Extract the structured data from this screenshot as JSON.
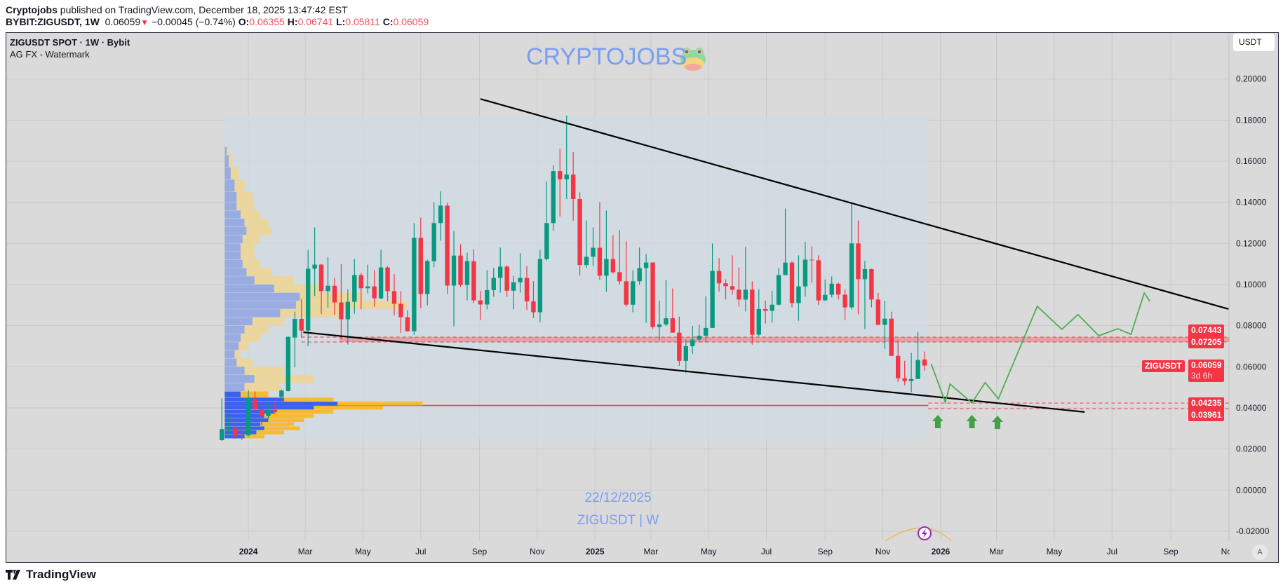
{
  "header": {
    "publisher": "Cryptojobs",
    "published_text": "published on TradingView.com, December 18, 2025 13:47:42 EST",
    "symbol_interval": "BYBIT:ZIGUSDT, 1W",
    "last": "0.06059",
    "change": "−0.00045 (−0.74%)",
    "o_label": "O:",
    "o": "0.06355",
    "h_label": "H:",
    "h": "0.06741",
    "l_label": "L:",
    "l": "0.05811",
    "c_label": "C:",
    "c": "0.06059"
  },
  "legend": {
    "title": "ZIGUSDT SPOT · 1W · Bybit",
    "indicator": "AG FX - Watermark"
  },
  "currency_button": "USDT",
  "watermark": {
    "brand": "CRYPTOJOBS",
    "date": "22/12/2025",
    "symbol": "ZIGUSDT | W"
  },
  "auto_button": "A",
  "branding": "TradingView",
  "colors": {
    "up": "#089981",
    "down": "#f23645",
    "projection": "#4caf50",
    "watermark": "#7b9ef0",
    "trendline": "#000000"
  },
  "icons": {
    "frog": "frog-emoji-icon",
    "lightning": "lightning-icon",
    "arrow": "arrow-up-icon"
  },
  "price_labels": {
    "resistance_top": "0.07443",
    "resistance_bottom": "0.07205",
    "symbol_tag": "ZIGUSDT",
    "last_price": "0.06059",
    "countdown": "3d 6h",
    "support_top": "0.04235",
    "support_bottom": "0.03961"
  },
  "chart_data": {
    "type": "candlestick",
    "interval": "1W",
    "grid": true,
    "y_axis": {
      "range": [
        -0.025,
        0.215
      ],
      "ticks": [
        "0.20000",
        "0.18000",
        "0.16000",
        "0.14000",
        "0.12000",
        "0.10000",
        "0.08000",
        "0.06000",
        "0.04000",
        "0.02000",
        "0.00000",
        "-0.02000"
      ]
    },
    "x_ticks": [
      {
        "label": "2024",
        "date": "2024-01-01"
      },
      {
        "label": "Mar",
        "date": "2024-03-01"
      },
      {
        "label": "May",
        "date": "2024-05-01"
      },
      {
        "label": "Jul",
        "date": "2024-07-01"
      },
      {
        "label": "Sep",
        "date": "2024-09-01"
      },
      {
        "label": "Nov",
        "date": "2024-11-01"
      },
      {
        "label": "2025",
        "date": "2025-01-01"
      },
      {
        "label": "Mar",
        "date": "2025-03-01"
      },
      {
        "label": "May",
        "date": "2025-05-01"
      },
      {
        "label": "Jul",
        "date": "2025-07-01"
      },
      {
        "label": "Sep",
        "date": "2025-09-01"
      },
      {
        "label": "Nov",
        "date": "2025-11-01"
      },
      {
        "label": "2026",
        "date": "2026-01-01"
      },
      {
        "label": "Mar",
        "date": "2026-03-01"
      },
      {
        "label": "May",
        "date": "2026-05-01"
      },
      {
        "label": "Jul",
        "date": "2026-07-01"
      },
      {
        "label": "Sep",
        "date": "2026-09-01"
      },
      {
        "label": "Nov",
        "date": "2026-11-01"
      }
    ],
    "candles_columns": [
      "date",
      "open",
      "high",
      "low",
      "close"
    ],
    "candles": [
      [
        "2023-12-04",
        0.0243,
        0.0447,
        0.024,
        0.0297
      ],
      [
        "2023-12-11",
        0.0297,
        0.0385,
        0.026,
        0.0305
      ],
      [
        "2023-12-18",
        0.03,
        0.0328,
        0.025,
        0.0263
      ],
      [
        "2023-12-25",
        0.0268,
        0.032,
        0.0245,
        0.0265
      ],
      [
        "2024-01-01",
        0.0266,
        0.0485,
        0.026,
        0.0448
      ],
      [
        "2024-01-08",
        0.0443,
        0.0481,
        0.0385,
        0.0392
      ],
      [
        "2024-01-15",
        0.0392,
        0.04,
        0.0317,
        0.036
      ],
      [
        "2024-01-22",
        0.036,
        0.042,
        0.0345,
        0.039
      ],
      [
        "2024-01-29",
        0.039,
        0.0425,
        0.037,
        0.038
      ],
      [
        "2024-02-05",
        0.0454,
        0.049,
        0.044,
        0.0484
      ],
      [
        "2024-02-12",
        0.0482,
        0.075,
        0.048,
        0.0745
      ],
      [
        "2024-02-19",
        0.0742,
        0.0868,
        0.0597,
        0.0833
      ],
      [
        "2024-02-26",
        0.0833,
        0.0929,
        0.0742,
        0.0776
      ],
      [
        "2024-03-04",
        0.0776,
        0.1169,
        0.07,
        0.1077
      ],
      [
        "2024-03-11",
        0.1077,
        0.1278,
        0.0944,
        0.1097
      ],
      [
        "2024-03-18",
        0.1097,
        0.11,
        0.0857,
        0.0968
      ],
      [
        "2024-03-25",
        0.0968,
        0.1134,
        0.0888,
        0.0994
      ],
      [
        "2024-04-01",
        0.0994,
        0.1032,
        0.0853,
        0.0913
      ],
      [
        "2024-04-08",
        0.0913,
        0.11,
        0.0734,
        0.0831
      ],
      [
        "2024-04-15",
        0.0831,
        0.0977,
        0.0708,
        0.0916
      ],
      [
        "2024-04-22",
        0.0916,
        0.1124,
        0.0858,
        0.1046
      ],
      [
        "2024-04-29",
        0.1046,
        0.1056,
        0.0879,
        0.0982
      ],
      [
        "2024-05-06",
        0.0982,
        0.1097,
        0.0957,
        0.0991
      ],
      [
        "2024-05-13",
        0.0991,
        0.107,
        0.0892,
        0.0933
      ],
      [
        "2024-05-20",
        0.0933,
        0.1169,
        0.0929,
        0.1083
      ],
      [
        "2024-05-27",
        0.1083,
        0.1089,
        0.0919,
        0.0968
      ],
      [
        "2024-06-03",
        0.0968,
        0.105,
        0.085,
        0.0906
      ],
      [
        "2024-06-10",
        0.0906,
        0.0967,
        0.0765,
        0.0841
      ],
      [
        "2024-06-17",
        0.0841,
        0.0876,
        0.077,
        0.0773
      ],
      [
        "2024-06-24",
        0.0773,
        0.1299,
        0.0755,
        0.1227
      ],
      [
        "2024-07-01",
        0.1227,
        0.1326,
        0.0885,
        0.0954
      ],
      [
        "2024-07-08",
        0.0954,
        0.1121,
        0.0899,
        0.1114
      ],
      [
        "2024-07-15",
        0.1114,
        0.1401,
        0.1084,
        0.1299
      ],
      [
        "2024-07-22",
        0.1299,
        0.1453,
        0.1214,
        0.1384
      ],
      [
        "2024-07-29",
        0.1384,
        0.1398,
        0.0954,
        0.0995
      ],
      [
        "2024-08-05",
        0.0995,
        0.1261,
        0.0797,
        0.1141
      ],
      [
        "2024-08-12",
        0.1141,
        0.1196,
        0.0988,
        0.0998
      ],
      [
        "2024-08-19",
        0.0998,
        0.1155,
        0.0923,
        0.1114
      ],
      [
        "2024-08-26",
        0.1114,
        0.1172,
        0.091,
        0.0923
      ],
      [
        "2024-09-02",
        0.0923,
        0.097,
        0.0828,
        0.0903
      ],
      [
        "2024-09-09",
        0.0903,
        0.107,
        0.0879,
        0.0973
      ],
      [
        "2024-09-16",
        0.0973,
        0.1081,
        0.0941,
        0.1032
      ],
      [
        "2024-09-23",
        0.1032,
        0.118,
        0.0961,
        0.1087
      ],
      [
        "2024-09-30",
        0.1087,
        0.1094,
        0.094,
        0.097
      ],
      [
        "2024-10-07",
        0.097,
        0.1042,
        0.0879,
        0.1011
      ],
      [
        "2024-10-14",
        0.1011,
        0.1152,
        0.0961,
        0.1032
      ],
      [
        "2024-10-21",
        0.1032,
        0.1089,
        0.0876,
        0.0918
      ],
      [
        "2024-10-28",
        0.0918,
        0.1016,
        0.0838,
        0.0865
      ],
      [
        "2024-11-04",
        0.0865,
        0.1169,
        0.0817,
        0.1124
      ],
      [
        "2024-11-11",
        0.1124,
        0.1501,
        0.1117,
        0.1299
      ],
      [
        "2024-11-18",
        0.1299,
        0.1579,
        0.1262,
        0.1552
      ],
      [
        "2024-11-25",
        0.1552,
        0.1661,
        0.1331,
        0.1512
      ],
      [
        "2024-12-02",
        0.1512,
        0.1822,
        0.1416,
        0.1535
      ],
      [
        "2024-12-09",
        0.1535,
        0.1644,
        0.131,
        0.1416
      ],
      [
        "2024-12-16",
        0.1416,
        0.1449,
        0.1043,
        0.1095
      ],
      [
        "2024-12-23",
        0.1095,
        0.1312,
        0.1081,
        0.1135
      ],
      [
        "2024-12-30",
        0.1135,
        0.1278,
        0.1091,
        0.1179
      ],
      [
        "2025-01-06",
        0.1179,
        0.1401,
        0.1023,
        0.1043
      ],
      [
        "2025-01-13",
        0.1043,
        0.136,
        0.0965,
        0.1124
      ],
      [
        "2025-01-20",
        0.1124,
        0.1241,
        0.1052,
        0.106
      ],
      [
        "2025-01-27",
        0.106,
        0.1265,
        0.0999,
        0.1016
      ],
      [
        "2025-02-03",
        0.1016,
        0.121,
        0.0892,
        0.0902
      ],
      [
        "2025-02-10",
        0.0902,
        0.107,
        0.0865,
        0.1016
      ],
      [
        "2025-02-17",
        0.1016,
        0.118,
        0.0999,
        0.108
      ],
      [
        "2025-02-24",
        0.108,
        0.1148,
        0.0814,
        0.1107
      ],
      [
        "2025-03-03",
        0.1107,
        0.1109,
        0.0783,
        0.0793
      ],
      [
        "2025-03-10",
        0.0793,
        0.0922,
        0.0728,
        0.0806
      ],
      [
        "2025-03-17",
        0.0806,
        0.1022,
        0.0799,
        0.0836
      ],
      [
        "2025-03-24",
        0.0836,
        0.0981,
        0.0766,
        0.0766
      ],
      [
        "2025-03-31",
        0.0766,
        0.0844,
        0.0605,
        0.0629
      ],
      [
        "2025-04-07",
        0.0629,
        0.0732,
        0.0568,
        0.07
      ],
      [
        "2025-04-14",
        0.07,
        0.0799,
        0.0663,
        0.0732
      ],
      [
        "2025-04-21",
        0.0732,
        0.0806,
        0.0718,
        0.0751
      ],
      [
        "2025-04-28",
        0.0751,
        0.0943,
        0.0718,
        0.0789
      ],
      [
        "2025-05-05",
        0.0789,
        0.12,
        0.0789,
        0.1066
      ],
      [
        "2025-05-12",
        0.1066,
        0.1128,
        0.0965,
        0.1006
      ],
      [
        "2025-05-19",
        0.1006,
        0.1025,
        0.0927,
        0.0992
      ],
      [
        "2025-05-26",
        0.0992,
        0.1142,
        0.0951,
        0.0975
      ],
      [
        "2025-06-02",
        0.0975,
        0.1083,
        0.0893,
        0.0927
      ],
      [
        "2025-06-09",
        0.0927,
        0.1183,
        0.0869,
        0.0975
      ],
      [
        "2025-06-16",
        0.0975,
        0.1016,
        0.0708,
        0.0756
      ],
      [
        "2025-06-23",
        0.0756,
        0.0977,
        0.0749,
        0.0881
      ],
      [
        "2025-06-30",
        0.0881,
        0.0922,
        0.081,
        0.0872
      ],
      [
        "2025-07-07",
        0.0872,
        0.097,
        0.0814,
        0.0902
      ],
      [
        "2025-07-14",
        0.0902,
        0.108,
        0.0898,
        0.1046
      ],
      [
        "2025-07-21",
        0.1046,
        0.137,
        0.1046,
        0.1107
      ],
      [
        "2025-07-28",
        0.1107,
        0.1112,
        0.0889,
        0.091
      ],
      [
        "2025-08-04",
        0.091,
        0.1142,
        0.0824,
        0.0991
      ],
      [
        "2025-08-11",
        0.0991,
        0.1207,
        0.0941,
        0.1121
      ],
      [
        "2025-08-18",
        0.1121,
        0.1186,
        0.1009,
        0.1118
      ],
      [
        "2025-08-25",
        0.1118,
        0.1142,
        0.09,
        0.0923
      ],
      [
        "2025-09-01",
        0.0923,
        0.1025,
        0.092,
        0.095
      ],
      [
        "2025-09-08",
        0.095,
        0.1039,
        0.0937,
        0.1004
      ],
      [
        "2025-09-15",
        0.1004,
        0.1009,
        0.0927,
        0.0951
      ],
      [
        "2025-09-22",
        0.0951,
        0.0977,
        0.0828,
        0.0889
      ],
      [
        "2025-09-29",
        0.0889,
        0.1395,
        0.0879,
        0.12
      ],
      [
        "2025-10-06",
        0.12,
        0.1312,
        0.0855,
        0.1026
      ],
      [
        "2025-10-13",
        0.1026,
        0.1114,
        0.0783,
        0.1075
      ],
      [
        "2025-10-20",
        0.1075,
        0.1078,
        0.0889,
        0.0927
      ],
      [
        "2025-10-27",
        0.0927,
        0.096,
        0.0801,
        0.0804
      ],
      [
        "2025-11-03",
        0.0804,
        0.092,
        0.0687,
        0.0834
      ],
      [
        "2025-11-10",
        0.0834,
        0.0868,
        0.0653,
        0.0653
      ],
      [
        "2025-11-17",
        0.0653,
        0.0732,
        0.0527,
        0.0544
      ],
      [
        "2025-11-24",
        0.0544,
        0.0629,
        0.051,
        0.053
      ],
      [
        "2025-12-01",
        0.053,
        0.0667,
        0.0475,
        0.054
      ],
      [
        "2025-12-08",
        0.054,
        0.077,
        0.054,
        0.0633
      ],
      [
        "2025-12-15",
        0.06355,
        0.06741,
        0.05811,
        0.06059
      ]
    ],
    "volume_profile_columns": [
      "price",
      "up_volume_pct",
      "total_volume_pct"
    ],
    "volume_profile": [
      [
        0.166,
        1,
        2
      ],
      [
        0.16,
        2,
        4
      ],
      [
        0.154,
        3,
        7
      ],
      [
        0.148,
        5,
        10
      ],
      [
        0.142,
        6,
        14
      ],
      [
        0.138,
        6,
        15
      ],
      [
        0.134,
        8,
        18
      ],
      [
        0.13,
        10,
        22
      ],
      [
        0.126,
        11,
        24
      ],
      [
        0.122,
        9,
        18
      ],
      [
        0.118,
        8,
        15
      ],
      [
        0.114,
        8,
        15
      ],
      [
        0.11,
        9,
        18
      ],
      [
        0.106,
        11,
        24
      ],
      [
        0.102,
        15,
        35
      ],
      [
        0.098,
        25,
        48
      ],
      [
        0.094,
        38,
        70
      ],
      [
        0.09,
        36,
        92
      ],
      [
        0.086,
        28,
        58
      ],
      [
        0.082,
        14,
        30
      ],
      [
        0.078,
        10,
        22
      ],
      [
        0.074,
        8,
        18
      ],
      [
        0.07,
        7,
        12
      ],
      [
        0.066,
        5,
        8
      ],
      [
        0.062,
        6,
        14
      ],
      [
        0.058,
        10,
        30
      ],
      [
        0.054,
        15,
        45
      ],
      [
        0.05,
        10,
        28
      ],
      [
        0.046,
        8,
        22
      ],
      [
        0.044,
        30,
        55
      ],
      [
        0.042,
        57,
        100
      ],
      [
        0.04,
        45,
        80
      ],
      [
        0.038,
        25,
        55
      ],
      [
        0.036,
        20,
        45
      ],
      [
        0.034,
        22,
        40
      ],
      [
        0.032,
        18,
        35
      ],
      [
        0.03,
        20,
        38
      ],
      [
        0.028,
        16,
        30
      ],
      [
        0.026,
        10,
        20
      ]
    ],
    "range_box": {
      "start": "2023-12-07",
      "end": "2025-12-19",
      "top": 0.182,
      "bottom": 0.025
    },
    "poc_line": {
      "price": 0.0412,
      "start": "2023-12-07",
      "end": "2025-12-19"
    },
    "resistance_zone": {
      "top": 0.07443,
      "bottom": 0.07205,
      "start": "2024-04-06",
      "dash_start": "2024-02-26"
    },
    "support_lines": {
      "top": 0.04235,
      "bottom": 0.03961,
      "start": "2025-12-19"
    },
    "trendlines": [
      {
        "name": "upper",
        "from": [
          "2024-09-02",
          0.1903
        ],
        "to": [
          "2026-11-01",
          0.0881
        ]
      },
      {
        "name": "lower",
        "from": [
          "2024-02-28",
          0.0768
        ],
        "to": [
          "2026-06-02",
          0.038
        ]
      }
    ],
    "projection_path": [
      [
        "2025-12-22",
        0.0614
      ],
      [
        "2026-01-06",
        0.0427
      ],
      [
        "2026-01-11",
        0.0516
      ],
      [
        "2026-02-03",
        0.0424
      ],
      [
        "2026-02-17",
        0.0523
      ],
      [
        "2026-03-03",
        0.0444
      ],
      [
        "2026-04-13",
        0.0894
      ],
      [
        "2026-05-09",
        0.0782
      ],
      [
        "2026-05-26",
        0.0854
      ],
      [
        "2026-06-17",
        0.0751
      ],
      [
        "2026-07-07",
        0.0785
      ],
      [
        "2026-07-21",
        0.0758
      ],
      [
        "2026-08-04",
        0.0959
      ],
      [
        "2026-08-10",
        0.0918
      ]
    ],
    "buy_arrows": [
      [
        "2025-12-29",
        0.0366
      ],
      [
        "2026-02-03",
        0.0366
      ],
      [
        "2026-03-02",
        0.0362
      ]
    ]
  }
}
